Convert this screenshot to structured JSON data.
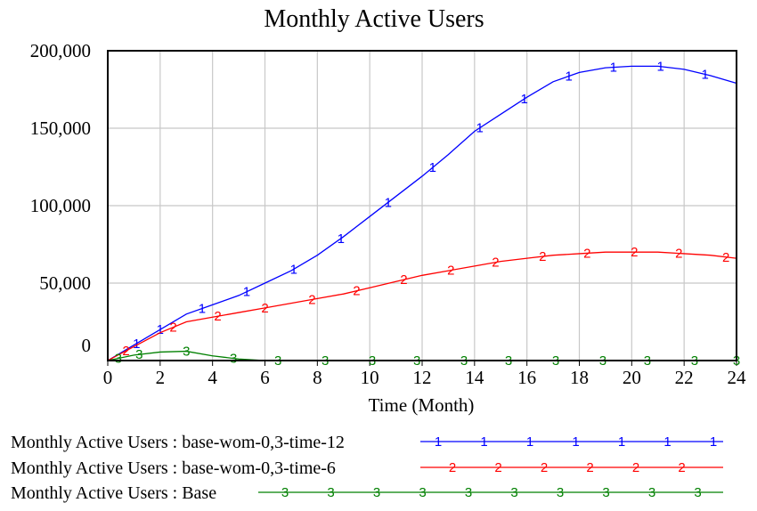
{
  "chart_data": {
    "type": "line",
    "title": "Monthly Active Users",
    "xlabel": "Time (Month)",
    "ylabel": "",
    "xlim": [
      0,
      24
    ],
    "ylim": [
      0,
      200000
    ],
    "x_ticks": [
      0,
      2,
      4,
      6,
      8,
      10,
      12,
      14,
      16,
      18,
      20,
      22,
      24
    ],
    "y_ticks": [
      0,
      50000,
      100000,
      150000,
      200000
    ],
    "x_tick_labels": [
      "0",
      "2",
      "4",
      "6",
      "8",
      "10",
      "12",
      "14",
      "16",
      "18",
      "20",
      "22",
      "24"
    ],
    "y_tick_labels": [
      "0",
      "50,000",
      "100,000",
      "150,000",
      "200,000"
    ],
    "grid": true,
    "legend_position": "bottom",
    "x": [
      0,
      1,
      2,
      3,
      4,
      5,
      6,
      7,
      8,
      9,
      10,
      11,
      12,
      13,
      14,
      15,
      16,
      17,
      18,
      19,
      20,
      21,
      22,
      23,
      24
    ],
    "series": [
      {
        "name": "Monthly Active Users : base-wom-0,3-time-12",
        "marker": "1",
        "color": "#0000ff",
        "values": [
          0,
          10000,
          20000,
          30000,
          36000,
          42000,
          50000,
          58000,
          68000,
          80000,
          93000,
          106000,
          119000,
          133000,
          148000,
          159000,
          170000,
          180000,
          186000,
          189000,
          190000,
          190000,
          188000,
          184000,
          179000
        ]
      },
      {
        "name": "Monthly Active Users : base-wom-0,3-time-6",
        "marker": "2",
        "color": "#ff0000",
        "values": [
          0,
          9000,
          18000,
          25000,
          28000,
          31000,
          34000,
          37000,
          40000,
          43000,
          47000,
          51000,
          55000,
          58000,
          61000,
          64000,
          66000,
          68000,
          69000,
          70000,
          70000,
          70000,
          69000,
          68000,
          66000
        ]
      },
      {
        "name": "Monthly Active Users : Base",
        "marker": "3",
        "color": "#008000",
        "values": [
          0,
          3500,
          5500,
          6000,
          3000,
          1000,
          0,
          0,
          0,
          0,
          0,
          0,
          0,
          0,
          0,
          0,
          0,
          0,
          0,
          0,
          0,
          0,
          0,
          0,
          0
        ]
      }
    ],
    "marker_positions": [
      [
        1.1,
        2.0,
        3.6,
        5.3,
        7.1,
        8.9,
        10.7,
        12.4,
        14.2,
        15.9,
        17.6,
        19.3,
        21.1,
        22.8
      ],
      [
        0.7,
        2.5,
        4.2,
        6.0,
        7.8,
        9.5,
        11.3,
        13.1,
        14.8,
        16.6,
        18.3,
        20.1,
        21.8,
        23.6
      ],
      [
        0.4,
        1.2,
        3.0,
        4.8,
        6.5,
        8.3,
        10.1,
        11.8,
        13.6,
        15.3,
        17.1,
        18.9,
        20.6,
        22.4,
        24.0
      ]
    ]
  }
}
